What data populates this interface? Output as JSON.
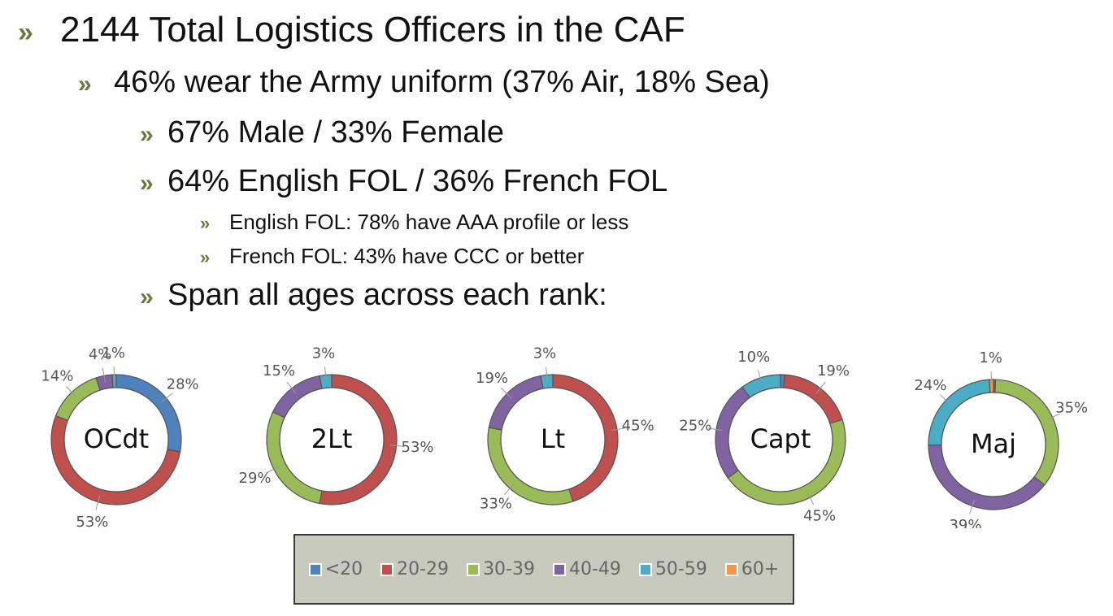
{
  "bullets": {
    "main": "2144 Total Logistics Officers in the CAF",
    "uniform": "46% wear the Army uniform (37% Air, 18% Sea)",
    "gender": "67% Male / 33% Female",
    "language": "64% English FOL / 36% French FOL",
    "english_profile": "English FOL: 78% have AAA profile or less",
    "french_profile": "French FOL: 43% have CCC or better",
    "ages": "Span all ages across each rank:"
  },
  "bullet_glyph": "»",
  "colors": {
    "<20": "#4f81bd",
    "20-29": "#c0504d",
    "30-39": "#9bbb59",
    "40-49": "#8064a2",
    "50-59": "#4bacc6",
    "60+": "#f79646",
    "bullet": "#6b7a3f",
    "legend_bg": "#c8cabd"
  },
  "legend": [
    "<20",
    "20-29",
    "30-39",
    "40-49",
    "50-59",
    "60+"
  ],
  "chart_data": [
    {
      "type": "pie",
      "title": "OCdt",
      "categories": [
        "<20",
        "20-29",
        "30-39",
        "40-49",
        "50-59",
        "60+"
      ],
      "values": [
        28,
        53,
        14,
        4,
        1,
        0
      ],
      "labels": [
        "28%",
        "53%",
        "14%",
        "4%",
        "1%",
        ""
      ]
    },
    {
      "type": "pie",
      "title": "2Lt",
      "categories": [
        "<20",
        "20-29",
        "30-39",
        "40-49",
        "50-59",
        "60+"
      ],
      "values": [
        0,
        53,
        29,
        15,
        3,
        0
      ],
      "labels": [
        "",
        "53%",
        "29%",
        "15%",
        "3%",
        ""
      ]
    },
    {
      "type": "pie",
      "title": "Lt",
      "categories": [
        "<20",
        "20-29",
        "30-39",
        "40-49",
        "50-59",
        "60+"
      ],
      "values": [
        0,
        45,
        33,
        19,
        3,
        0
      ],
      "labels": [
        "",
        "45%",
        "33%",
        "19%",
        "3%",
        ""
      ]
    },
    {
      "type": "pie",
      "title": "Capt",
      "categories": [
        "<20",
        "20-29",
        "30-39",
        "40-49",
        "50-59",
        "60+"
      ],
      "values": [
        1,
        19,
        45,
        25,
        10,
        0
      ],
      "labels": [
        "",
        "19%",
        "45%",
        "25%",
        "10%",
        ""
      ]
    },
    {
      "type": "pie",
      "title": "Maj",
      "categories": [
        "<20",
        "20-29",
        "30-39",
        "40-49",
        "50-59",
        "60+"
      ],
      "values": [
        0,
        0.5,
        35,
        39,
        24,
        1
      ],
      "labels": [
        "",
        "",
        "35%",
        "39%",
        "24%",
        "1%"
      ]
    }
  ]
}
